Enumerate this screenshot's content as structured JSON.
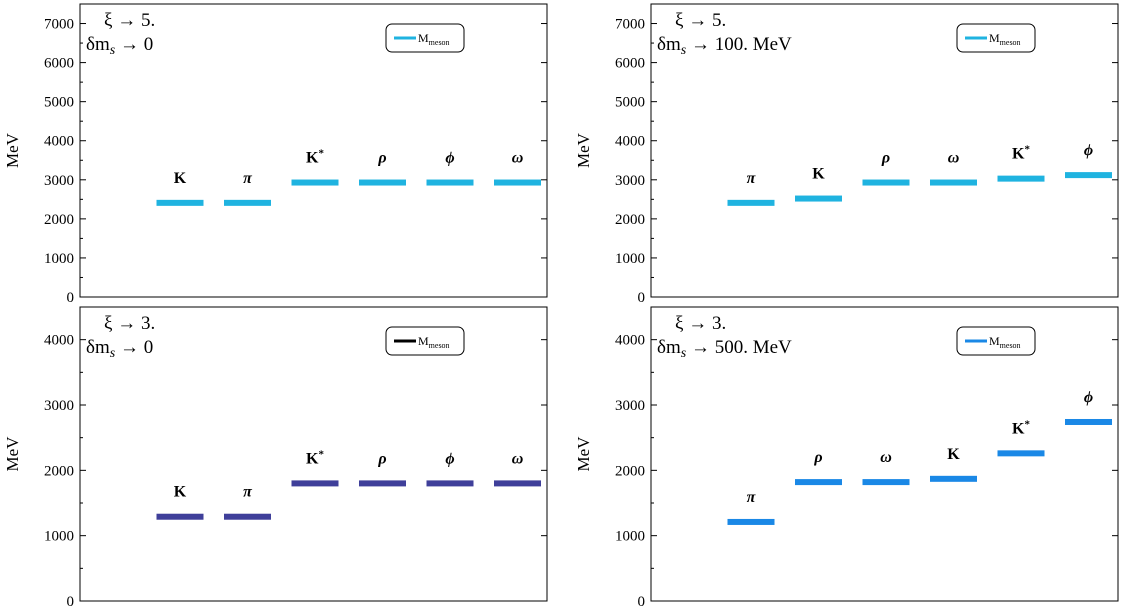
{
  "chart_data": [
    {
      "type": "bar",
      "mark": "level",
      "ylabel": "MeV",
      "ylim": [
        0,
        7500
      ],
      "yticks": [
        0,
        1000,
        2000,
        3000,
        4000,
        5000,
        6000,
        7000
      ],
      "params": [
        "ξ → 5.",
        "δm_s → 0"
      ],
      "legend": {
        "label": "M",
        "sub": "meson",
        "position": "top-right"
      },
      "color": "#1fb3e0",
      "categories": [
        "K",
        "π",
        "K*",
        "ρ",
        "ϕ",
        "ω"
      ],
      "values": [
        2410,
        2410,
        2930,
        2930,
        2930,
        2930
      ]
    },
    {
      "type": "bar",
      "mark": "level",
      "ylabel": "MeV",
      "ylim": [
        0,
        7500
      ],
      "yticks": [
        0,
        1000,
        2000,
        3000,
        4000,
        5000,
        6000,
        7000
      ],
      "params": [
        "ξ → 5.",
        "δm_s → 100. MeV"
      ],
      "legend": {
        "label": "M",
        "sub": "meson",
        "position": "top-right"
      },
      "color": "#1fb3e0",
      "categories": [
        "π",
        "K",
        "ρ",
        "ω",
        "K*",
        "ϕ"
      ],
      "values": [
        2410,
        2520,
        2930,
        2930,
        3030,
        3120
      ]
    },
    {
      "type": "bar",
      "mark": "level",
      "ylabel": "MeV",
      "ylim": [
        0,
        4500
      ],
      "yticks": [
        0,
        1000,
        2000,
        3000,
        4000
      ],
      "params": [
        "ξ → 3.",
        "δm_s → 0"
      ],
      "legend": {
        "label": "M",
        "sub": "meson",
        "position": "top-right",
        "swatch": "#000000"
      },
      "color": "#3f3f9a",
      "categories": [
        "K",
        "π",
        "K*",
        "ρ",
        "ϕ",
        "ω"
      ],
      "values": [
        1290,
        1290,
        1800,
        1800,
        1800,
        1800
      ]
    },
    {
      "type": "bar",
      "mark": "level",
      "ylabel": "MeV",
      "ylim": [
        0,
        4500
      ],
      "yticks": [
        0,
        1000,
        2000,
        3000,
        4000
      ],
      "params": [
        "ξ → 3.",
        "δm_s → 500. MeV"
      ],
      "legend": {
        "label": "M",
        "sub": "meson",
        "position": "top-right"
      },
      "color": "#1a88e6",
      "categories": [
        "π",
        "ρ",
        "ω",
        "K",
        "K*",
        "ϕ"
      ],
      "values": [
        1210,
        1820,
        1820,
        1870,
        2260,
        2740
      ]
    }
  ]
}
